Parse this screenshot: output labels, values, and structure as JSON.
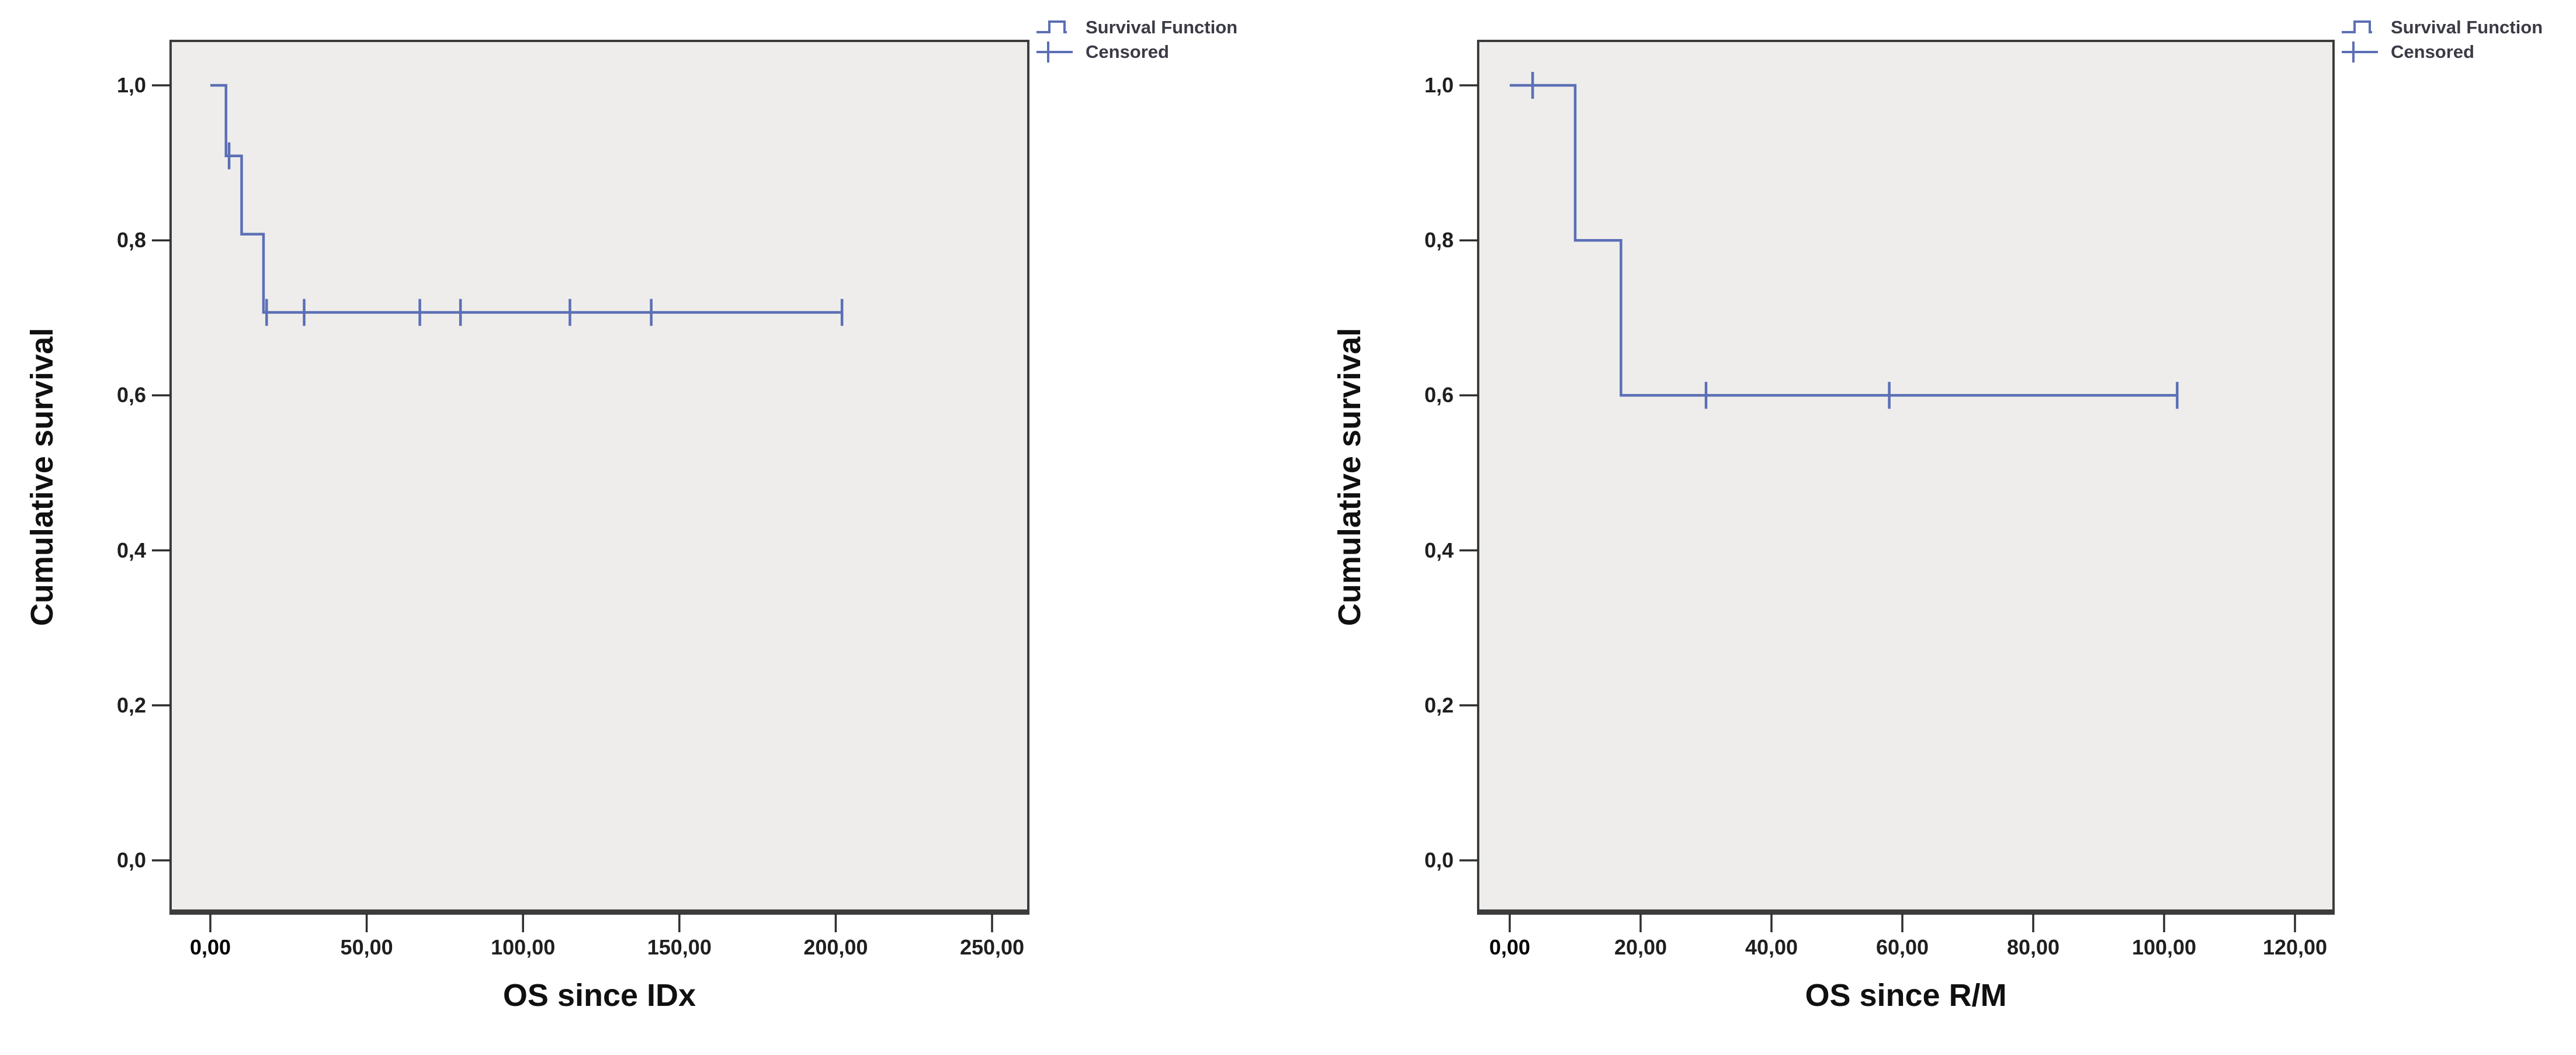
{
  "page": {
    "background": "#ffffff"
  },
  "chart_data": [
    {
      "type": "line",
      "subtype": "kaplan_meier_step",
      "panel": "left",
      "title": "",
      "xlabel": "OS since IDx",
      "ylabel": "Cumulative survival",
      "xlim": [
        0,
        250
      ],
      "ylim": [
        0.0,
        1.0
      ],
      "grid": false,
      "legend_position": "top-right-outside",
      "legend": [
        "Survival Function",
        "Censored"
      ],
      "line_color": "#5b6fb5",
      "plot_bg": "#eeedeb",
      "x_ticks": [
        {
          "v": 0,
          "label": "0,00",
          "bold": true
        },
        {
          "v": 50,
          "label": "50,00",
          "bold": false
        },
        {
          "v": 100,
          "label": "100,00",
          "bold": false
        },
        {
          "v": 150,
          "label": "150,00",
          "bold": false
        },
        {
          "v": 200,
          "label": "200,00",
          "bold": false
        },
        {
          "v": 250,
          "label": "250,00",
          "bold": false
        }
      ],
      "y_ticks": [
        {
          "v": 1.0,
          "label": "1,0"
        },
        {
          "v": 0.8,
          "label": "0,8"
        },
        {
          "v": 0.6,
          "label": "0,6"
        },
        {
          "v": 0.4,
          "label": "0,4"
        },
        {
          "v": 0.2,
          "label": "0,2"
        },
        {
          "v": 0.0,
          "label": "0,0"
        }
      ],
      "series": [
        {
          "name": "Survival Function",
          "role": "step_line",
          "points": [
            [
              0,
              1.0
            ],
            [
              5,
              1.0
            ],
            [
              5,
              0.909
            ],
            [
              10,
              0.909
            ],
            [
              10,
              0.808
            ],
            [
              17,
              0.808
            ],
            [
              17,
              0.707
            ],
            [
              202,
              0.707
            ]
          ]
        },
        {
          "name": "Censored",
          "role": "censor_marks",
          "points": [
            [
              6,
              0.909
            ],
            [
              18,
              0.707
            ],
            [
              30,
              0.707
            ],
            [
              67,
              0.707
            ],
            [
              80,
              0.707
            ],
            [
              115,
              0.707
            ],
            [
              141,
              0.707
            ],
            [
              202,
              0.707
            ]
          ]
        }
      ]
    },
    {
      "type": "line",
      "subtype": "kaplan_meier_step",
      "panel": "right",
      "title": "",
      "xlabel": "OS since R/M",
      "ylabel": "Cumulative survival",
      "xlim": [
        0,
        120
      ],
      "ylim": [
        0.0,
        1.0
      ],
      "grid": false,
      "legend_position": "top-right-outside",
      "legend": [
        "Survival Function",
        "Censored"
      ],
      "line_color": "#5b6fb5",
      "plot_bg": "#eeedeb",
      "x_ticks": [
        {
          "v": 0,
          "label": "0,00",
          "bold": true
        },
        {
          "v": 20,
          "label": "20,00",
          "bold": false
        },
        {
          "v": 40,
          "label": "40,00",
          "bold": false
        },
        {
          "v": 60,
          "label": "60,00",
          "bold": false
        },
        {
          "v": 80,
          "label": "80,00",
          "bold": false
        },
        {
          "v": 100,
          "label": "100,00",
          "bold": false
        },
        {
          "v": 120,
          "label": "120,00",
          "bold": false
        }
      ],
      "y_ticks": [
        {
          "v": 1.0,
          "label": "1,0"
        },
        {
          "v": 0.8,
          "label": "0,8"
        },
        {
          "v": 0.6,
          "label": "0,6"
        },
        {
          "v": 0.4,
          "label": "0,4"
        },
        {
          "v": 0.2,
          "label": "0,2"
        },
        {
          "v": 0.0,
          "label": "0,0"
        }
      ],
      "series": [
        {
          "name": "Survival Function",
          "role": "step_line",
          "points": [
            [
              0,
              1.0
            ],
            [
              10,
              1.0
            ],
            [
              10,
              0.8
            ],
            [
              17,
              0.8
            ],
            [
              17,
              0.6
            ],
            [
              102,
              0.6
            ]
          ]
        },
        {
          "name": "Censored",
          "role": "censor_marks",
          "points": [
            [
              3.5,
              1.0
            ],
            [
              30,
              0.6
            ],
            [
              58,
              0.6
            ],
            [
              102,
              0.6
            ]
          ]
        }
      ]
    }
  ]
}
